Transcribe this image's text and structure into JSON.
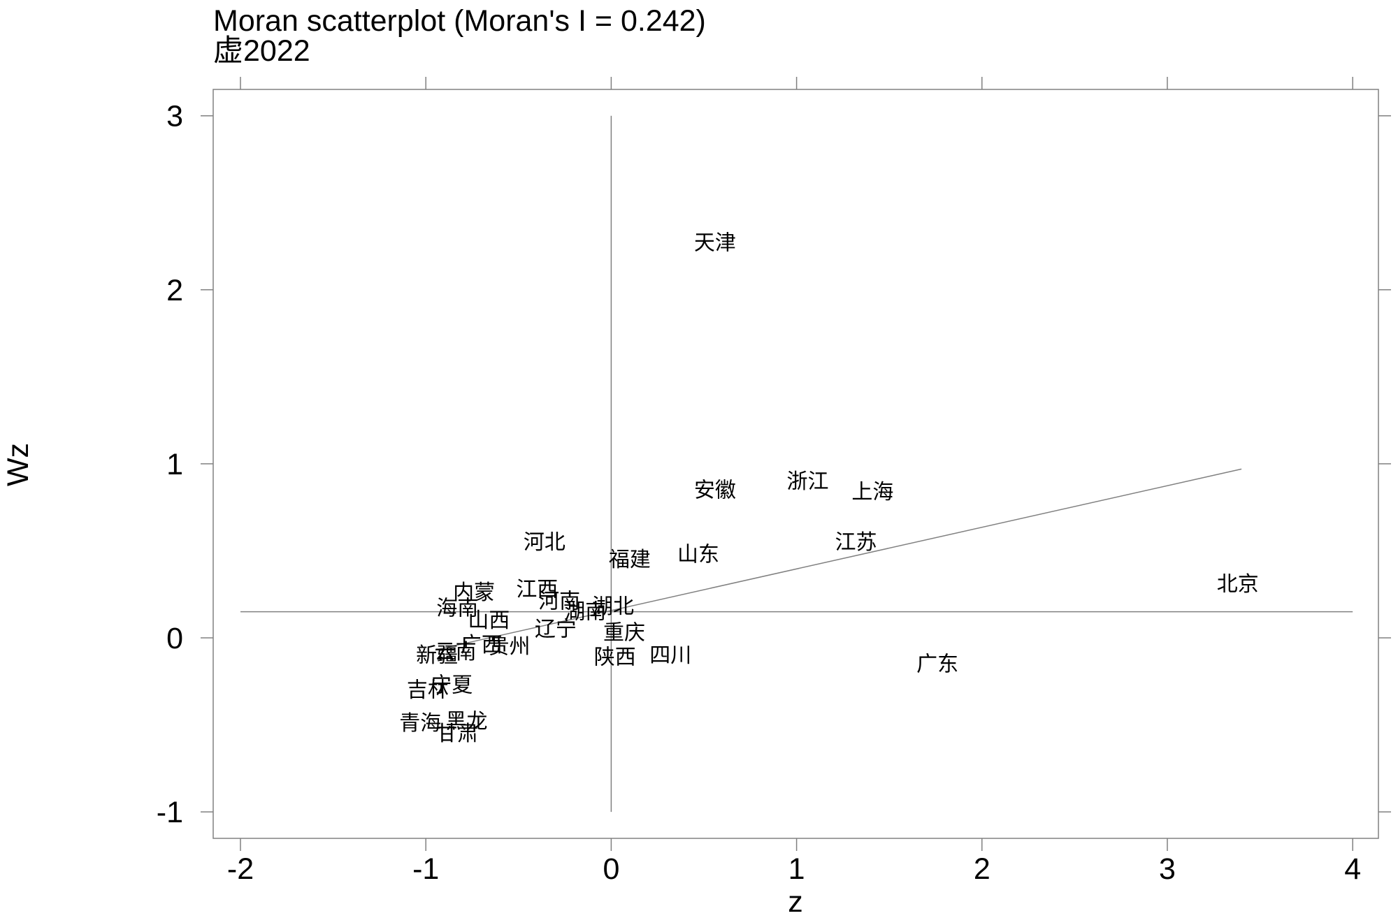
{
  "chart_data": {
    "type": "scatter",
    "title": "Moran scatterplot (Moran's I = 0.242)",
    "subtitle": "虚2022",
    "xlabel": "z",
    "ylabel": "Wz",
    "xlim": [
      -2,
      4
    ],
    "ylim": [
      -1,
      3
    ],
    "x_ticks": [
      "-2",
      "-1",
      "0",
      "1",
      "2",
      "3",
      "4"
    ],
    "y_ticks": [
      "-1",
      "0",
      "1",
      "2",
      "3"
    ],
    "mean_lines": {
      "x": 0,
      "y": 0.15
    },
    "fit_line": {
      "x": [
        -0.95,
        3.4
      ],
      "y": [
        -0.07,
        0.97
      ]
    },
    "points": [
      {
        "label": "天津",
        "x": 0.56,
        "y": 2.27
      },
      {
        "label": "安徽",
        "x": 0.56,
        "y": 0.85
      },
      {
        "label": "浙江",
        "x": 1.06,
        "y": 0.9
      },
      {
        "label": "上海",
        "x": 1.41,
        "y": 0.84
      },
      {
        "label": "江苏",
        "x": 1.32,
        "y": 0.55
      },
      {
        "label": "北京",
        "x": 3.38,
        "y": 0.31
      },
      {
        "label": "河北",
        "x": -0.36,
        "y": 0.55
      },
      {
        "label": "福建",
        "x": 0.1,
        "y": 0.45
      },
      {
        "label": "山东",
        "x": 0.47,
        "y": 0.48
      },
      {
        "label": "内蒙",
        "x": -0.74,
        "y": 0.26
      },
      {
        "label": "江西",
        "x": -0.4,
        "y": 0.28
      },
      {
        "label": "河南",
        "x": -0.28,
        "y": 0.21
      },
      {
        "label": "湖北",
        "x": 0.01,
        "y": 0.18
      },
      {
        "label": "湖南",
        "x": -0.14,
        "y": 0.15
      },
      {
        "label": "海南",
        "x": -0.83,
        "y": 0.17
      },
      {
        "label": "山西",
        "x": -0.66,
        "y": 0.1
      },
      {
        "label": "辽宁",
        "x": -0.3,
        "y": 0.05
      },
      {
        "label": "重庆",
        "x": 0.07,
        "y": 0.03
      },
      {
        "label": "广西",
        "x": -0.7,
        "y": -0.04
      },
      {
        "label": "贵州",
        "x": -0.55,
        "y": -0.05
      },
      {
        "label": "云南",
        "x": -0.84,
        "y": -0.08
      },
      {
        "label": "新疆",
        "x": -0.94,
        "y": -0.1
      },
      {
        "label": "陕西",
        "x": 0.02,
        "y": -0.11
      },
      {
        "label": "四川",
        "x": 0.32,
        "y": -0.1
      },
      {
        "label": "广东",
        "x": 1.76,
        "y": -0.15
      },
      {
        "label": "宁夏",
        "x": -0.86,
        "y": -0.27
      },
      {
        "label": "吉林",
        "x": -0.99,
        "y": -0.3
      },
      {
        "label": "青海",
        "x": -1.03,
        "y": -0.49
      },
      {
        "label": "黑龙",
        "x": -0.78,
        "y": -0.48
      },
      {
        "label": "甘肃",
        "x": -0.83,
        "y": -0.55
      }
    ]
  }
}
